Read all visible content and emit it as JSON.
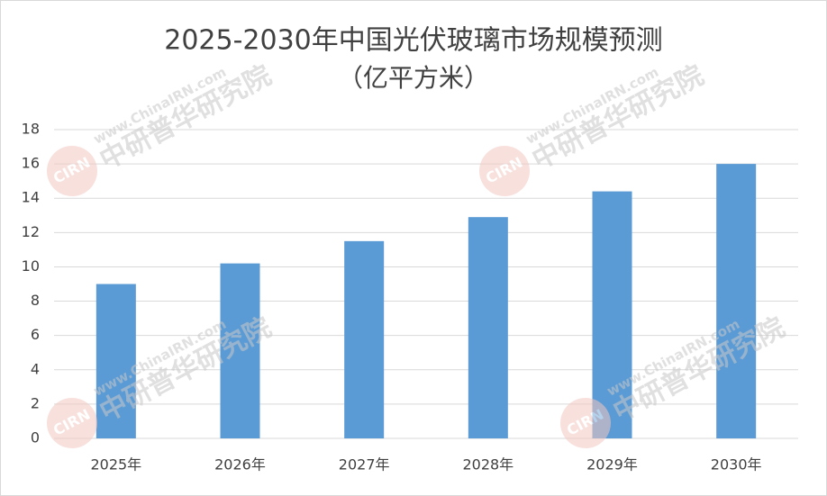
{
  "chart_data": {
    "type": "bar",
    "title": "2025-2030年中国光伏玻璃市场规模预测",
    "subtitle": "（亿平方米）",
    "categories": [
      "2025年",
      "2026年",
      "2027年",
      "2028年",
      "2029年",
      "2030年"
    ],
    "values": [
      9.0,
      10.2,
      11.5,
      12.9,
      14.4,
      16.0
    ],
    "color": "#5b9bd5",
    "ylim": [
      0,
      18
    ],
    "yticks": [
      0,
      2,
      4,
      6,
      8,
      10,
      12,
      14,
      16,
      18
    ],
    "grid": true,
    "watermark": {
      "url": "www.ChinaIRN.com",
      "name": "中研普华研究院",
      "logo": "CIRN"
    }
  }
}
